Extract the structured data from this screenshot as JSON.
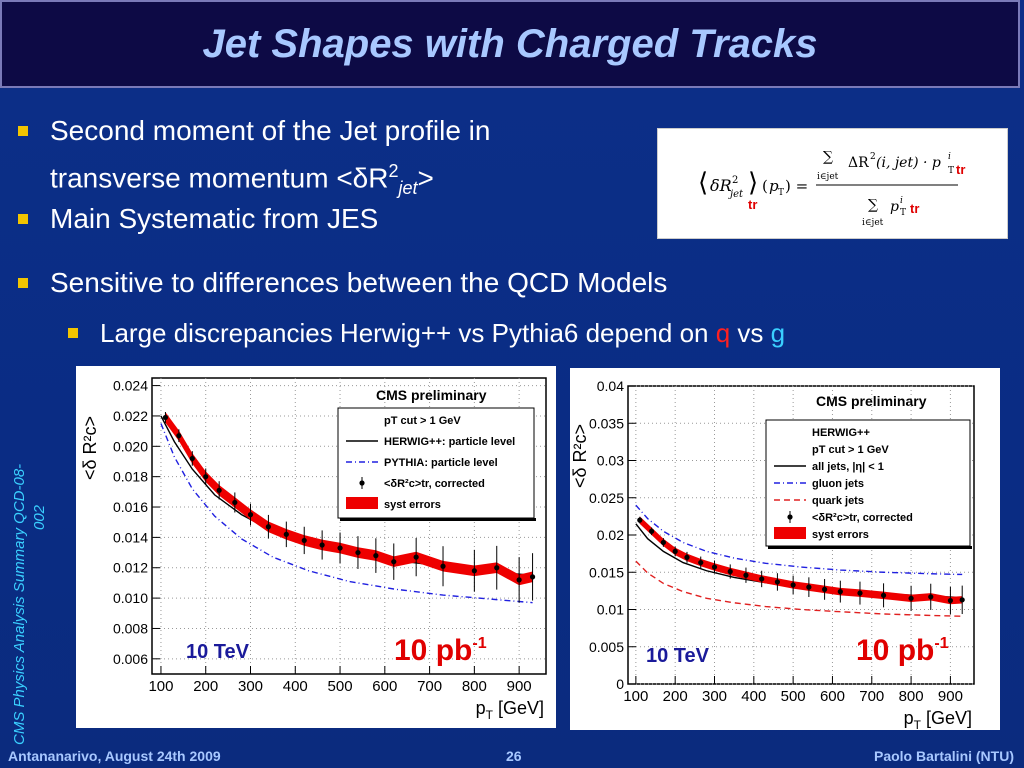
{
  "slide": {
    "title": "Jet Shapes with Charged Tracks",
    "bullets": {
      "b1_line1": "Second moment of the Jet profile in",
      "b1_line2": "transverse momentum <δR",
      "b1_sup": "2",
      "b1_sub": "jet",
      "b1_end": ">",
      "b2": "Main Systematic from JES",
      "b3": "Sensitive to differences between the QCD Models",
      "b4_pre": "Large discrepancies Herwig++ vs Pythia6 depend on ",
      "b4_q": "q",
      "b4_vs": " vs ",
      "b4_g": "g"
    },
    "side_label": "CMS Physics Analysis Summary QCD-08-002",
    "footer": {
      "left": "Antananarivo, August 24th 2009",
      "center": "26",
      "right": "Paolo Bartalini (NTU)"
    },
    "formula": {
      "tr": "tr"
    },
    "colors": {
      "accent": "#f2c500",
      "title": "#a8c8ff",
      "red": "#ff2020",
      "cyan": "#3ad0ff"
    }
  },
  "chart_data": [
    {
      "type": "line",
      "title": "CMS preliminary",
      "xlabel": "p_T [GeV]",
      "ylabel": "<δ R²_c>",
      "xlim": [
        80,
        960
      ],
      "ylim": [
        0.005,
        0.0245
      ],
      "xticks": [
        100,
        200,
        300,
        400,
        500,
        600,
        700,
        800,
        900
      ],
      "yticks": [
        0.006,
        0.008,
        0.01,
        0.012,
        0.014,
        0.016,
        0.018,
        0.02,
        0.022,
        0.024
      ],
      "legend": [
        "p_T^cut > 1 GeV",
        "HERWIG++: particle level",
        "PYTHIA: particle level",
        "<δR²_c>_tr, corrected",
        "syst errors"
      ],
      "annotation_energy": "10 TeV",
      "annotation_lumi": "10 pb",
      "annotation_lumi_exp": "-1",
      "series": [
        {
          "name": "HERWIG++: particle level",
          "style": "solid",
          "color": "#000000",
          "x": [
            100,
            130,
            170,
            220,
            280,
            350,
            430,
            520,
            620,
            730,
            850,
            930
          ],
          "y": [
            0.022,
            0.0203,
            0.0185,
            0.0168,
            0.0155,
            0.0144,
            0.0136,
            0.013,
            0.0125,
            0.0121,
            0.0117,
            0.0115
          ]
        },
        {
          "name": "PYTHIA: particle level",
          "style": "dashdot",
          "color": "#2020e0",
          "x": [
            100,
            130,
            170,
            220,
            280,
            350,
            430,
            520,
            620,
            730,
            850,
            930
          ],
          "y": [
            0.0215,
            0.0193,
            0.0172,
            0.0154,
            0.0139,
            0.0127,
            0.0118,
            0.0111,
            0.0106,
            0.0102,
            0.0099,
            0.0097
          ]
        },
        {
          "name": "<δR²_c>_tr, corrected",
          "style": "points",
          "color": "#000000",
          "x": [
            110,
            140,
            170,
            200,
            230,
            265,
            300,
            340,
            380,
            420,
            460,
            500,
            540,
            580,
            620,
            670,
            730,
            800,
            850,
            900,
            930
          ],
          "y": [
            0.0219,
            0.0207,
            0.0192,
            0.018,
            0.0171,
            0.0163,
            0.0155,
            0.0147,
            0.0142,
            0.0138,
            0.0135,
            0.0133,
            0.013,
            0.0128,
            0.0124,
            0.0127,
            0.0121,
            0.0118,
            0.012,
            0.0112,
            0.0114
          ]
        }
      ]
    },
    {
      "type": "line",
      "title": "CMS preliminary",
      "xlabel": "p_T [GeV]",
      "ylabel": "<δR²_c>",
      "xlim": [
        80,
        960
      ],
      "ylim": [
        0,
        0.04
      ],
      "xticks": [
        100,
        200,
        300,
        400,
        500,
        600,
        700,
        800,
        900
      ],
      "yticks": [
        0,
        0.005,
        0.01,
        0.015,
        0.02,
        0.025,
        0.03,
        0.035,
        0.04
      ],
      "legend": [
        "HERWIG++",
        "p_T^cut > 1 GeV",
        "all jets, |η| < 1",
        "gluon jets",
        "quark jets",
        "<δR²_c>_tr, corrected",
        "syst errors"
      ],
      "annotation_energy": "10 TeV",
      "annotation_lumi": "10 pb",
      "annotation_lumi_exp": "-1",
      "series": [
        {
          "name": "all jets, |η| < 1",
          "style": "solid",
          "color": "#000000",
          "x": [
            100,
            130,
            170,
            220,
            280,
            350,
            430,
            520,
            620,
            730,
            850,
            930
          ],
          "y": [
            0.0215,
            0.0195,
            0.0178,
            0.0163,
            0.0152,
            0.0143,
            0.0136,
            0.013,
            0.0125,
            0.0121,
            0.0118,
            0.0116
          ]
        },
        {
          "name": "gluon jets",
          "style": "dashdot",
          "color": "#2020e0",
          "x": [
            100,
            130,
            170,
            220,
            280,
            350,
            430,
            520,
            620,
            730,
            850,
            930
          ],
          "y": [
            0.024,
            0.0222,
            0.0205,
            0.019,
            0.0178,
            0.0169,
            0.0162,
            0.0157,
            0.0153,
            0.015,
            0.0148,
            0.0147
          ]
        },
        {
          "name": "quark jets",
          "style": "dashed",
          "color": "#e02020",
          "x": [
            100,
            130,
            170,
            220,
            280,
            350,
            430,
            520,
            620,
            730,
            850,
            930
          ],
          "y": [
            0.0165,
            0.0149,
            0.0135,
            0.0124,
            0.0115,
            0.0109,
            0.0104,
            0.01,
            0.0097,
            0.0094,
            0.0092,
            0.0091
          ]
        },
        {
          "name": "<δR²_c>_tr, corrected",
          "style": "points",
          "color": "#000000",
          "x": [
            110,
            140,
            170,
            200,
            230,
            265,
            300,
            340,
            380,
            420,
            460,
            500,
            540,
            580,
            620,
            670,
            730,
            800,
            850,
            900,
            930
          ],
          "y": [
            0.022,
            0.0205,
            0.019,
            0.0178,
            0.017,
            0.0163,
            0.0157,
            0.0151,
            0.0146,
            0.0141,
            0.0137,
            0.0133,
            0.013,
            0.0127,
            0.0124,
            0.0122,
            0.0119,
            0.0115,
            0.0117,
            0.0112,
            0.0113
          ]
        }
      ]
    }
  ]
}
